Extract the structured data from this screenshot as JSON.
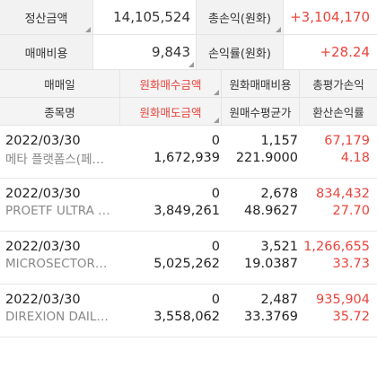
{
  "summary": {
    "row1": {
      "label_left": "정산금액",
      "value_left": "14,105,524",
      "label_right": "총손익(원화)",
      "value_right": "+3,104,170"
    },
    "row2": {
      "label_left": "매매비용",
      "value_left": "9,843",
      "label_right": "손익률(원화)",
      "value_right": "+28.24"
    }
  },
  "header": {
    "row1": [
      "매매일",
      "원화매수금액",
      "원화매매비용",
      "총평가손익"
    ],
    "row2": [
      "종목명",
      "원화매도금액",
      "원매수평균가",
      "환산손익률"
    ]
  },
  "trades": [
    {
      "date": "2022/03/30",
      "name": "메타 플랫폼스(페…",
      "buy": "0",
      "sell": "1,672,939",
      "cost": "1,157",
      "avg": "221.9000",
      "pnl": "67,179",
      "rate": "4.18"
    },
    {
      "date": "2022/03/30",
      "name": "PROETF ULTRA …",
      "buy": "0",
      "sell": "3,849,261",
      "cost": "2,678",
      "avg": "48.9627",
      "pnl": "834,432",
      "rate": "27.70"
    },
    {
      "date": "2022/03/30",
      "name": "MICROSECTOR…",
      "buy": "0",
      "sell": "5,025,262",
      "cost": "3,521",
      "avg": "19.0387",
      "pnl": "1,266,655",
      "rate": "33.73"
    },
    {
      "date": "2022/03/30",
      "name": "DIREXION DAIL…",
      "buy": "0",
      "sell": "3,558,062",
      "cost": "2,487",
      "avg": "33.3769",
      "pnl": "935,904",
      "rate": "35.72"
    }
  ],
  "colors": {
    "accent_red": "#e8453c",
    "label_bg": "#f2f2f2"
  }
}
